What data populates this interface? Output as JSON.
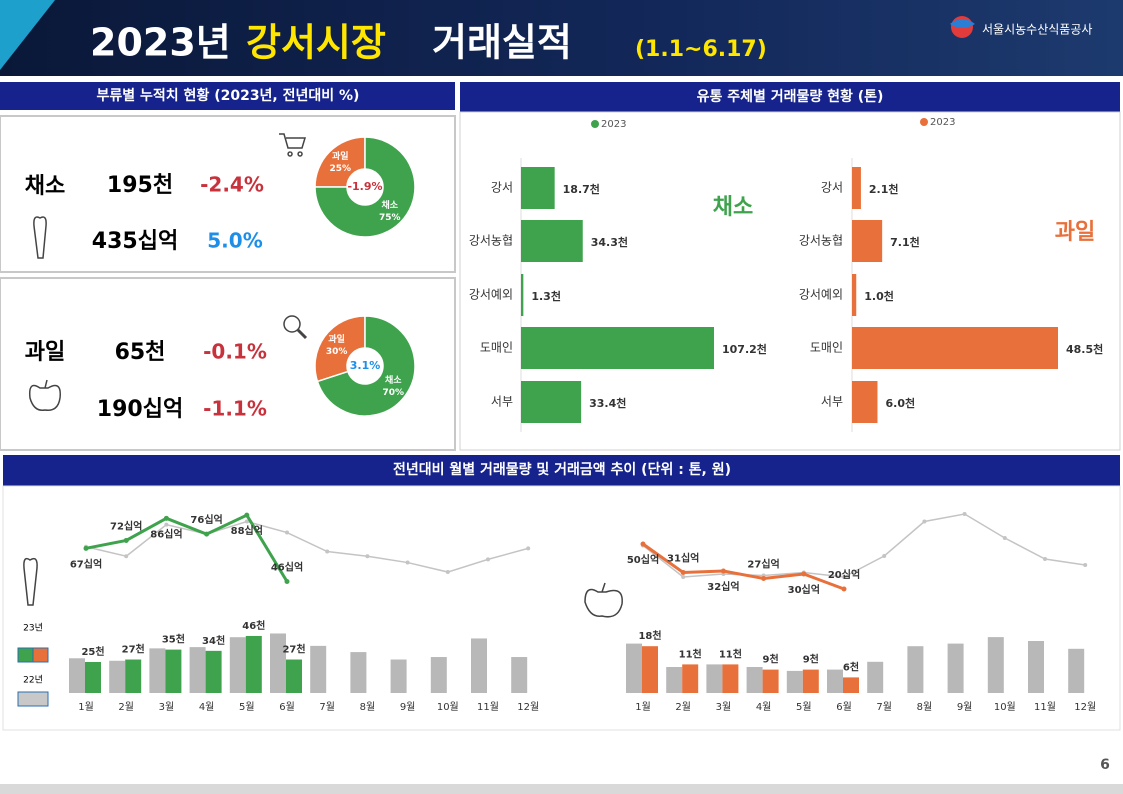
{
  "header": {
    "title_year": "2023년",
    "title_market": "강서시장",
    "title_rest": "거래실적",
    "period": "(1.1~6.17)",
    "org": "서울시농수산식품공사",
    "page": "6"
  },
  "panels": {
    "summary_title": "부류별 누적치 현황 (2023년, 전년대비 %)",
    "dist_title": "유통 주체별 거래물량 현황 (톤)",
    "monthly_title": "전년대비 월별 거래물량 및 거래금액 추이 (단위 : 톤, 원)"
  },
  "kpis": [
    {
      "name": "채소",
      "volume": "195천",
      "volume_change": "-2.4%",
      "volume_change_color": "#c8323c",
      "amount": "435십억",
      "amount_change": "5.0%",
      "amount_change_color": "#1e8fe8"
    },
    {
      "name": "과일",
      "volume": "65천",
      "volume_change": "-0.1%",
      "volume_change_color": "#c8323c",
      "amount": "190십억",
      "amount_change": "-1.1%",
      "amount_change_color": "#c8323c"
    }
  ],
  "legend": [
    "23년",
    "22년"
  ],
  "chart_data": [
    {
      "type": "pie",
      "categories": [
        "과일",
        "채소"
      ],
      "values": [
        25,
        75
      ],
      "value_labels": [
        "25%",
        "75%"
      ],
      "colors": [
        "#e8703a",
        "#3fa34d"
      ],
      "center_label": "-1.9%",
      "center_color": "#c8323c"
    },
    {
      "type": "pie",
      "categories": [
        "과일",
        "채소"
      ],
      "values": [
        30,
        70
      ],
      "value_labels": [
        "30%",
        "70%"
      ],
      "colors": [
        "#e8703a",
        "#3fa34d"
      ],
      "center_label": "3.1%",
      "center_color": "#1e8fe8"
    },
    {
      "type": "bar",
      "orientation": "horizontal",
      "title": "채소",
      "legend": "2023",
      "categories": [
        "강서",
        "강서농협",
        "강서예외",
        "도매인",
        "서부"
      ],
      "values": [
        18.7,
        34.3,
        1.3,
        107.2,
        33.4
      ],
      "value_labels": [
        "18.7천",
        "34.3천",
        "1.3천",
        "107.2천",
        "33.4천"
      ],
      "color": "#3fa34d"
    },
    {
      "type": "bar",
      "orientation": "horizontal",
      "title": "과일",
      "legend": "2023",
      "categories": [
        "강서",
        "강서농협",
        "강서예외",
        "도매인",
        "서부"
      ],
      "values": [
        2.1,
        7.1,
        1.0,
        48.5,
        6.0
      ],
      "value_labels": [
        "2.1천",
        "7.1천",
        "1.0천",
        "48.5천",
        "6.0천"
      ],
      "color": "#e8703a"
    },
    {
      "type": "combo",
      "categories": [
        "1월",
        "2월",
        "3월",
        "4월",
        "5월",
        "6월",
        "7월",
        "8월",
        "9월",
        "10월",
        "11월",
        "12월"
      ],
      "ylim": [
        0,
        50
      ],
      "y2lim": [
        40,
        90
      ],
      "series": [
        {
          "type": "line",
          "axis": "y2",
          "color": "#c4c4c4",
          "values": [
            68,
            62,
            82,
            76,
            84,
            77,
            65,
            62,
            58,
            52,
            60,
            67
          ]
        },
        {
          "type": "bar",
          "color": "#b8b8b8",
          "values": [
            28,
            26,
            36,
            37,
            45,
            48,
            38,
            33,
            27,
            29,
            44,
            29
          ]
        },
        {
          "type": "bar",
          "color": "#3fa34d",
          "values": [
            25,
            27,
            35,
            34,
            46,
            27,
            null,
            null,
            null,
            null,
            null,
            null
          ],
          "value_labels": [
            "25천",
            "27천",
            "35천",
            "34천",
            "46천",
            "27천",
            null,
            null,
            null,
            null,
            null,
            null
          ]
        },
        {
          "type": "line",
          "axis": "y2",
          "color": "#3fa34d",
          "values": [
            67,
            72,
            86,
            76,
            88,
            46,
            null,
            null,
            null,
            null,
            null,
            null
          ],
          "value_labels": [
            "67십억",
            "72십억",
            "86십억",
            "76십억",
            "88십억",
            "46십억",
            null,
            null,
            null,
            null,
            null,
            null
          ]
        }
      ]
    },
    {
      "type": "combo",
      "categories": [
        "1월",
        "2월",
        "3월",
        "4월",
        "5월",
        "6월",
        "7월",
        "8월",
        "9월",
        "10월",
        "11월",
        "12월"
      ],
      "ylim": [
        0,
        20
      ],
      "y2lim": [
        10,
        70
      ],
      "series": [
        {
          "type": "line",
          "axis": "y2",
          "color": "#c4c4c4",
          "values": [
            49,
            28,
            30,
            29,
            31,
            28,
            42,
            65,
            70,
            54,
            40,
            36
          ]
        },
        {
          "type": "bar",
          "color": "#b8b8b8",
          "values": [
            19,
            10,
            11,
            10,
            8.5,
            9,
            12,
            18,
            19,
            21.5,
            20,
            17
          ]
        },
        {
          "type": "bar",
          "color": "#e8703a",
          "values": [
            18,
            11,
            11,
            9,
            9,
            6,
            null,
            null,
            null,
            null,
            null,
            null
          ],
          "value_labels": [
            "18천",
            "11천",
            "11천",
            "9천",
            "9천",
            "6천",
            null,
            null,
            null,
            null,
            null,
            null
          ]
        },
        {
          "type": "line",
          "axis": "y2",
          "color": "#e8703a",
          "values": [
            50,
            31,
            32,
            27,
            30,
            20,
            null,
            null,
            null,
            null,
            null,
            null
          ],
          "value_labels": [
            "50십억",
            "31십억",
            "32십억",
            "27십억",
            "30십억",
            "20십억",
            null,
            null,
            null,
            null,
            null,
            null
          ]
        }
      ]
    }
  ]
}
